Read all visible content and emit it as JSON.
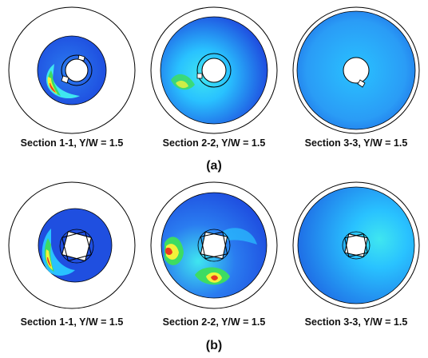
{
  "figure": {
    "rows": [
      {
        "label": "(a)",
        "panels": [
          {
            "caption": "Section 1-1, Y/W = 1.5",
            "core": "round",
            "field": "low-with-hotspot"
          },
          {
            "caption": "Section 2-2, Y/W = 1.5",
            "core": "round",
            "field": "moderate"
          },
          {
            "caption": "Section 3-3, Y/W = 1.5",
            "core": "round",
            "field": "uniform"
          }
        ]
      },
      {
        "label": "(b)",
        "panels": [
          {
            "caption": "Section 1-1, Y/W = 1.5",
            "core": "square",
            "field": "low-with-hotspot"
          },
          {
            "caption": "Section 2-2, Y/W = 1.5",
            "core": "square",
            "field": "high"
          },
          {
            "caption": "Section 3-3, Y/W = 1.5",
            "core": "square",
            "field": "uniform"
          }
        ]
      }
    ],
    "colors": {
      "outline": "#000000",
      "deep_blue": "#1f4fe0",
      "mid_blue": "#2a7cf0",
      "light_blue": "#29c2ff",
      "cyan": "#3fe6f0",
      "green": "#3ddc63",
      "yellow": "#f2f23a",
      "red": "#ea3a1f"
    }
  }
}
